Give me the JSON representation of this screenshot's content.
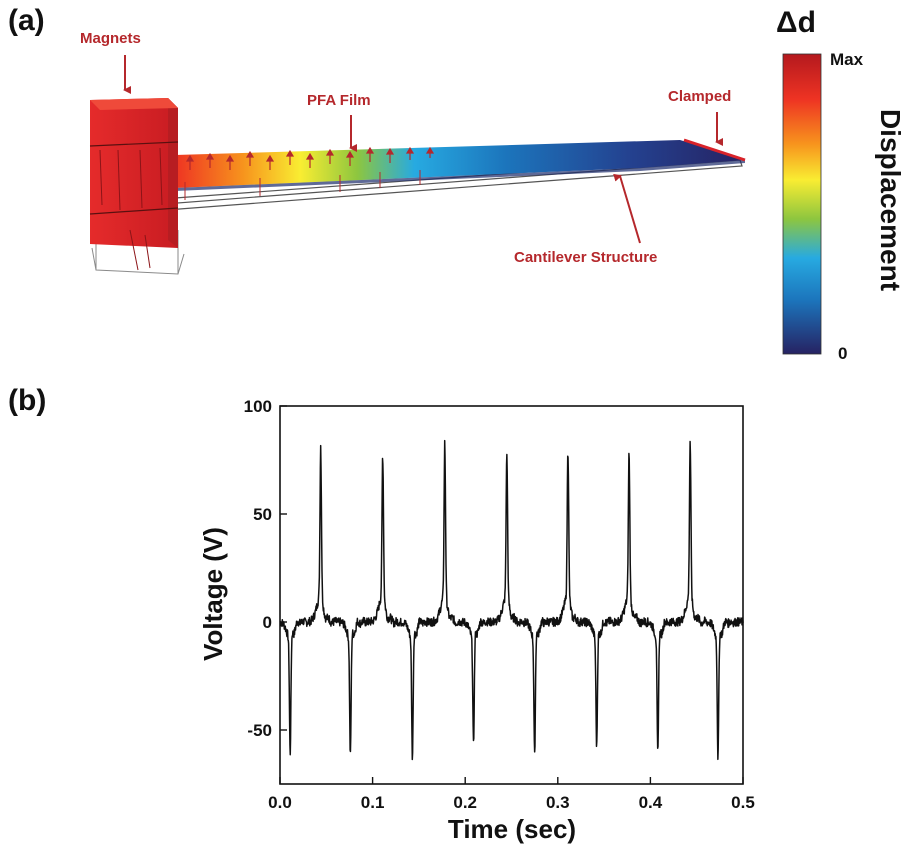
{
  "panel_a": {
    "label": "(a)",
    "annotations": {
      "magnets": "Magnets",
      "pfa_film": "PFA Film",
      "clamped": "Clamped",
      "cantilever": "Cantilever Structure"
    },
    "colorbar": {
      "symbol": "Δd",
      "max_label": "Max",
      "min_label": "0",
      "title": "Displacement",
      "colors": [
        "#b4191e",
        "#ee3323",
        "#f7941d",
        "#f9ed32",
        "#8dc63f",
        "#27aae1",
        "#1c75bc",
        "#262262"
      ]
    },
    "colors": {
      "arrow": "#b5282c",
      "magnet": "#d8232a"
    }
  },
  "panel_b": {
    "label": "(b)"
  },
  "chart_data": {
    "type": "line",
    "xlabel": "Time (sec)",
    "ylabel": "Voltage (V)",
    "xlim": [
      0.0,
      0.5
    ],
    "ylim": [
      -75,
      100
    ],
    "xticks": [
      "0.0",
      "0.1",
      "0.2",
      "0.3",
      "0.4",
      "0.5"
    ],
    "yticks": [
      "100",
      "50",
      "0",
      "-50"
    ],
    "xtick_values": [
      0.0,
      0.1,
      0.2,
      0.3,
      0.4,
      0.5
    ],
    "ytick_values": [
      100,
      50,
      0,
      -50
    ],
    "grid": false,
    "line_color": "#111111",
    "series": [
      {
        "positive_peaks": [
          [
            0.044,
            70
          ],
          [
            0.111,
            68
          ],
          [
            0.178,
            72
          ],
          [
            0.245,
            69
          ],
          [
            0.311,
            71
          ],
          [
            0.377,
            68
          ],
          [
            0.443,
            73
          ]
        ],
        "negative_peaks": [
          [
            0.011,
            -53
          ],
          [
            0.076,
            -54
          ],
          [
            0.143,
            -55
          ],
          [
            0.209,
            -49
          ],
          [
            0.275,
            -54
          ],
          [
            0.342,
            -50
          ],
          [
            0.408,
            -53
          ],
          [
            0.473,
            -55
          ]
        ]
      }
    ]
  }
}
